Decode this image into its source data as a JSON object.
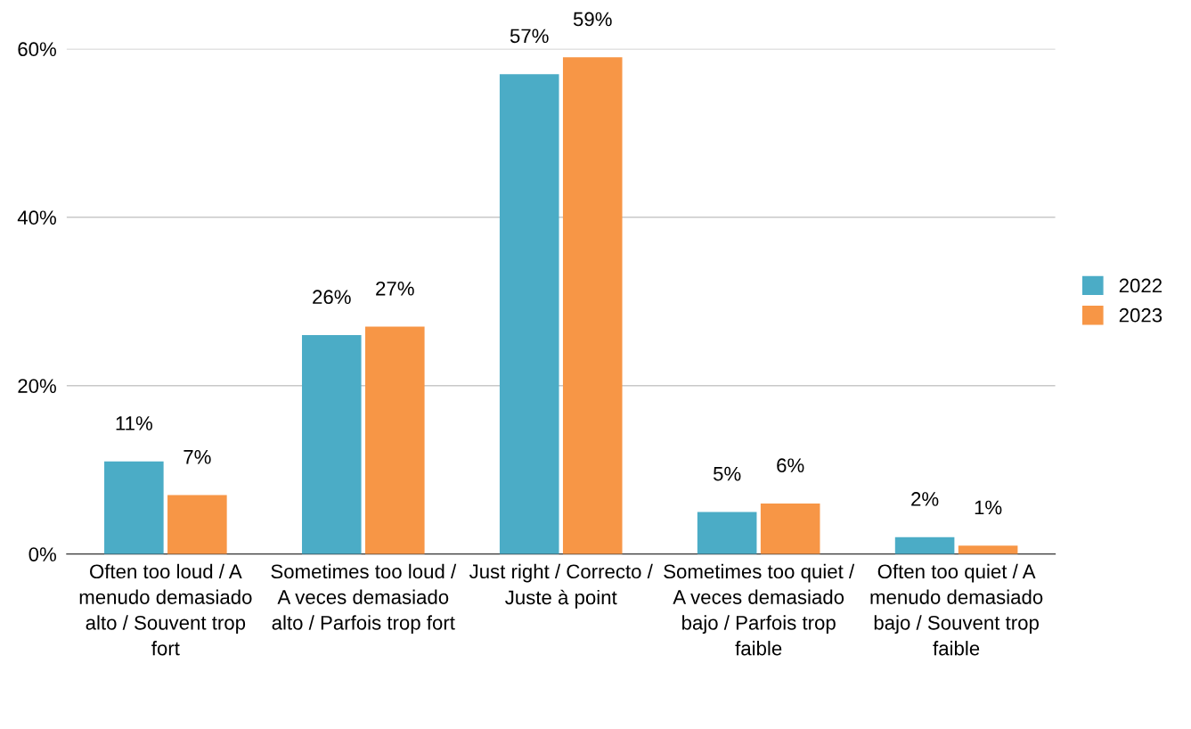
{
  "chart_data": {
    "type": "bar",
    "categories": [
      "Often too loud / A menudo demasiado alto / Souvent trop fort",
      "Sometimes too loud / A veces demasiado alto / Parfois trop fort",
      "Just right / Correcto / Juste à point",
      "Sometimes too quiet / A veces demasiado bajo / Parfois trop faible",
      "Often too quiet / A menudo demasiado bajo / Souvent trop faible"
    ],
    "series": [
      {
        "name": "2022",
        "color": "#4bacc6",
        "values": [
          11,
          26,
          57,
          5,
          2
        ],
        "value_labels": [
          "11%",
          "26%",
          "57%",
          "5%",
          "2%"
        ]
      },
      {
        "name": "2023",
        "color": "#f79646",
        "values": [
          7,
          27,
          59,
          6,
          1
        ],
        "value_labels": [
          "7%",
          "27%",
          "59%",
          "6%",
          "1%"
        ]
      }
    ],
    "ylim": [
      0,
      60
    ],
    "yticks": [
      {
        "value": 0,
        "label": "0%"
      },
      {
        "value": 20,
        "label": "20%"
      },
      {
        "value": 40,
        "label": "40%"
      },
      {
        "value": 60,
        "label": "60%"
      }
    ],
    "grid": "y",
    "legend": "right"
  }
}
